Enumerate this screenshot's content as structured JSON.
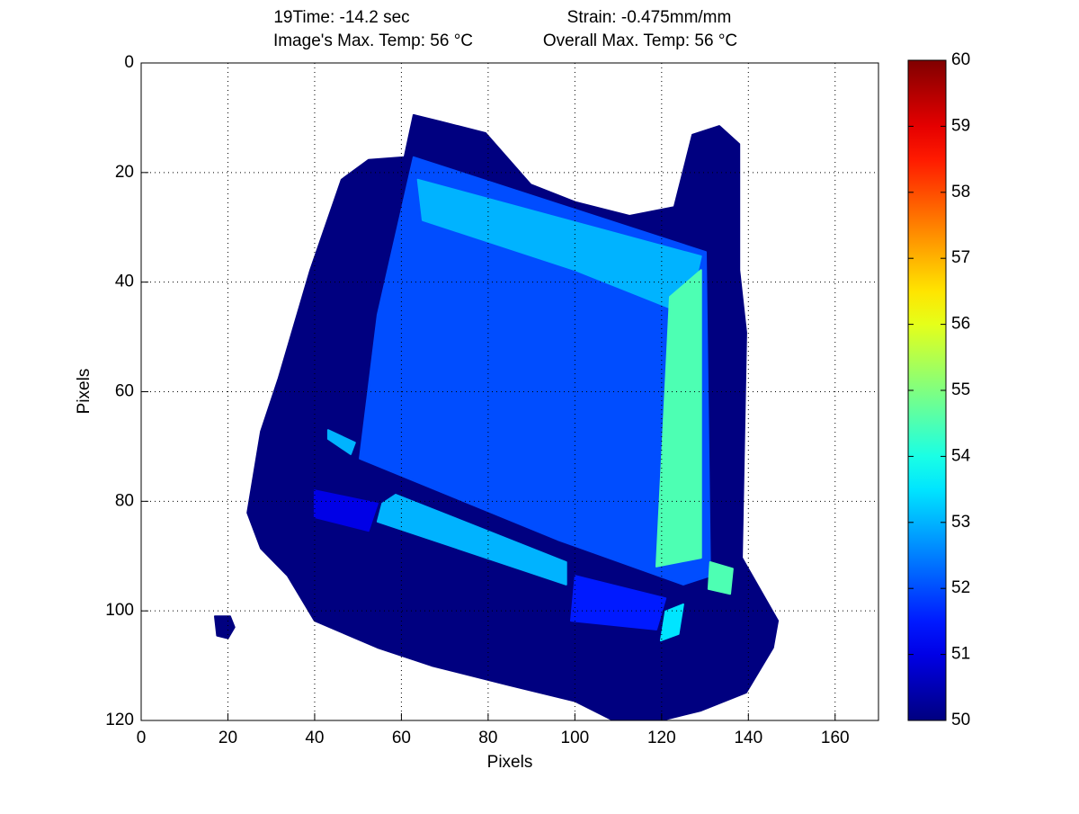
{
  "chart_data": {
    "type": "heatmap",
    "title_parts": [
      "19Time: -14.2 sec",
      "Strain: -0.475mm/mm",
      "Image's Max. Temp: 56 °C",
      "Overall Max. Temp: 56 °C"
    ],
    "x_label": "Pixels",
    "y_label": "Pixels",
    "xlim": [
      0,
      170
    ],
    "ylim": [
      0,
      120
    ],
    "xticks": [
      0,
      20,
      40,
      60,
      80,
      100,
      120,
      140,
      160
    ],
    "yticks": [
      0,
      20,
      40,
      60,
      80,
      100,
      120
    ],
    "y_reversed": true,
    "grid": true,
    "colormap": "jet",
    "clim": [
      50,
      60
    ],
    "cticks": [
      50,
      51,
      52,
      53,
      54,
      55,
      56,
      57,
      58,
      59,
      60
    ],
    "regions": [
      {
        "value": 50,
        "points": [
          [
            62.8,
            9.5
          ],
          [
            69.0,
            10.7
          ],
          [
            79.4,
            12.8
          ],
          [
            89.8,
            22.2
          ],
          [
            100.1,
            25.4
          ],
          [
            112.6,
            27.9
          ],
          [
            122.9,
            26.3
          ],
          [
            127.1,
            13.1
          ],
          [
            133.3,
            11.5
          ],
          [
            137.9,
            14.8
          ],
          [
            137.9,
            37.8
          ],
          [
            139.5,
            49.2
          ],
          [
            138.5,
            90.3
          ],
          [
            146.8,
            101.8
          ],
          [
            145.7,
            106.7
          ],
          [
            139.5,
            114.9
          ],
          [
            129.1,
            118.2
          ],
          [
            120.9,
            119.8
          ],
          [
            108.4,
            119.8
          ],
          [
            100.1,
            116.5
          ],
          [
            83.5,
            113.3
          ],
          [
            67.0,
            110.0
          ],
          [
            54.5,
            106.7
          ],
          [
            40.0,
            101.8
          ],
          [
            33.8,
            93.6
          ],
          [
            27.6,
            88.6
          ],
          [
            24.5,
            82.1
          ],
          [
            27.6,
            67.3
          ],
          [
            31.7,
            57.5
          ],
          [
            39.0,
            37.8
          ],
          [
            46.2,
            21.3
          ],
          [
            52.4,
            17.7
          ],
          [
            60.7,
            17.2
          ]
        ]
      },
      {
        "value": 50,
        "points": [
          [
            17,
            101
          ],
          [
            20.5,
            101
          ],
          [
            21.5,
            103
          ],
          [
            20,
            105
          ],
          [
            17.5,
            104.5
          ]
        ]
      },
      {
        "value": 52,
        "points": [
          [
            62.8,
            17.2
          ],
          [
            130.2,
            34.5
          ],
          [
            131.2,
            93.6
          ],
          [
            125,
            95.2
          ],
          [
            96,
            87
          ],
          [
            50.4,
            72.2
          ],
          [
            54.5,
            46
          ]
        ]
      },
      {
        "value": 53,
        "points": [
          [
            63.8,
            21.3
          ],
          [
            129.1,
            35.3
          ],
          [
            126,
            46
          ],
          [
            100.1,
            37.8
          ],
          [
            64.9,
            28.7
          ]
        ]
      },
      {
        "value": 54.5,
        "points": [
          [
            121.9,
            42.7
          ],
          [
            129.1,
            37.8
          ],
          [
            129.1,
            90.3
          ],
          [
            118.8,
            91.9
          ]
        ]
      },
      {
        "value": 53,
        "points": [
          [
            55.6,
            80.4
          ],
          [
            58.7,
            78.8
          ],
          [
            98,
            91.1
          ],
          [
            98,
            95.2
          ],
          [
            54.5,
            83.7
          ]
        ]
      },
      {
        "value": 53,
        "points": [
          [
            43.1,
            67
          ],
          [
            49.3,
            69.3
          ],
          [
            48.3,
            71.4
          ],
          [
            43.1,
            68.6
          ]
        ]
      },
      {
        "value": 54.5,
        "points": [
          [
            131.2,
            91.1
          ],
          [
            136.4,
            92.3
          ],
          [
            135.8,
            96.9
          ],
          [
            130.8,
            96
          ]
        ]
      },
      {
        "value": 51.5,
        "points": [
          [
            100.1,
            93.6
          ],
          [
            120.9,
            97.7
          ],
          [
            118.8,
            103.4
          ],
          [
            99.1,
            101.8
          ]
        ]
      },
      {
        "value": 53.5,
        "points": [
          [
            120.9,
            100.1
          ],
          [
            125,
            98.8
          ],
          [
            123.9,
            104.2
          ],
          [
            119.8,
            105.4
          ]
        ]
      },
      {
        "value": 51,
        "points": [
          [
            40,
            78
          ],
          [
            54.5,
            80.4
          ],
          [
            52.4,
            85.4
          ],
          [
            40,
            82.9
          ]
        ]
      }
    ]
  }
}
